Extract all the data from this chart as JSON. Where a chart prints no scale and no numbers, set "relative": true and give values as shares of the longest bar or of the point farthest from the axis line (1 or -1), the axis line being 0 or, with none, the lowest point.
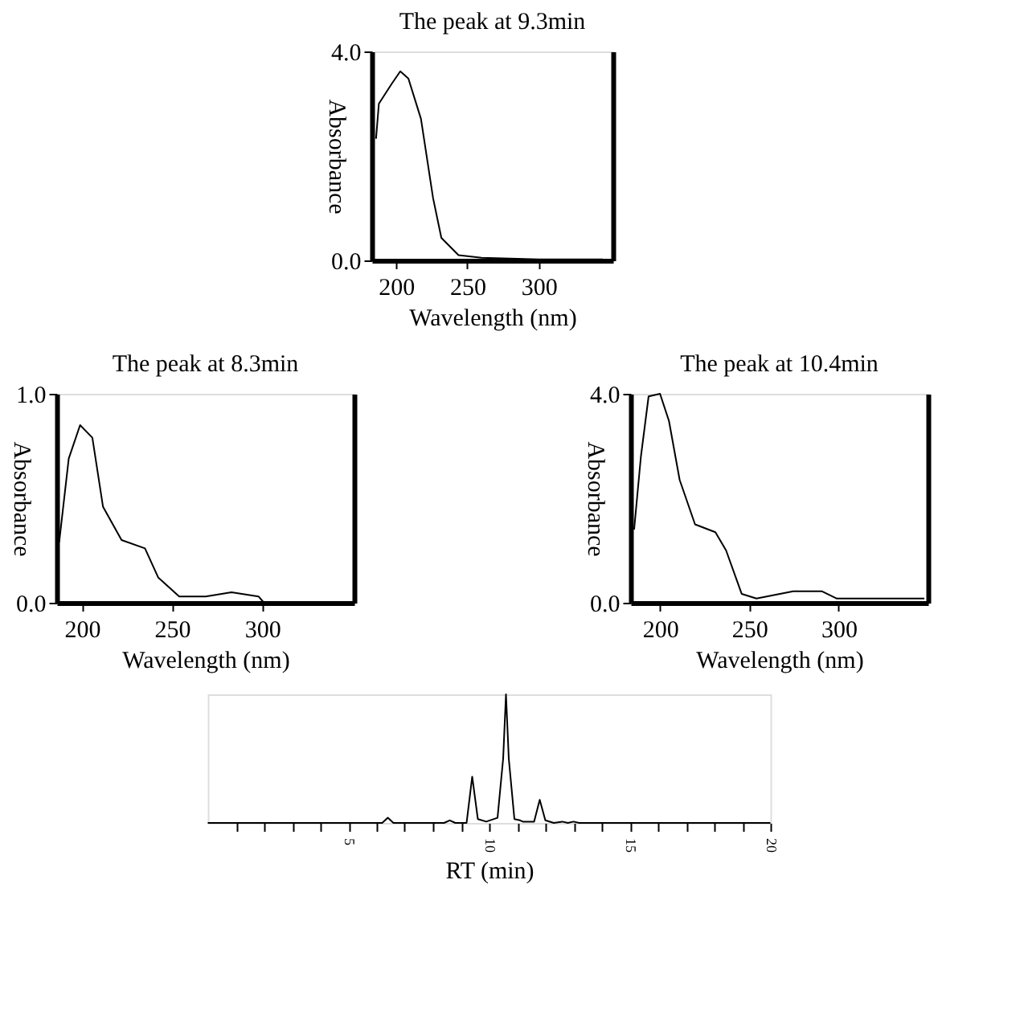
{
  "chart_data": [
    {
      "type": "line",
      "title": "The peak at 9.3min",
      "xlabel": "Wavelength (nm)",
      "ylabel": "Absorbance",
      "color": "#000000",
      "grid": false,
      "x": [
        186,
        188,
        197,
        203,
        208.7,
        217.5,
        226,
        231.8,
        243.8,
        260,
        300,
        345
      ],
      "values": [
        2.33,
        3.0,
        3.38,
        3.62,
        3.48,
        2.71,
        1.19,
        0.43,
        0.1,
        0.05,
        0.02,
        0.02
      ],
      "xlim": [
        183,
        352
      ],
      "ylim": [
        0,
        4
      ],
      "xticks": [
        200,
        250,
        300
      ],
      "yticks": [
        {
          "value": 0,
          "label": "0.0"
        },
        {
          "value": 4,
          "label": "4.0"
        }
      ]
    },
    {
      "type": "line",
      "title": "The peak at 8.3min",
      "xlabel": "Wavelength (nm)",
      "ylabel": "Absorbance",
      "color": "#000000",
      "grid": false,
      "x": [
        187.4,
        192.7,
        199,
        205.8,
        211.7,
        222,
        235,
        242.4,
        254,
        268.7,
        283,
        298,
        301,
        348
      ],
      "values": [
        0.29,
        0.69,
        0.85,
        0.79,
        0.46,
        0.3,
        0.26,
        0.12,
        0.03,
        0.03,
        0.05,
        0.03,
        0,
        0
      ],
      "xlim": [
        186,
        351
      ],
      "ylim": [
        0,
        1
      ],
      "xticks": [
        200,
        250,
        300
      ],
      "yticks": [
        {
          "value": 0,
          "label": "0.0"
        },
        {
          "value": 1,
          "label": "1.0"
        }
      ]
    },
    {
      "type": "line",
      "title": "The peak at 10.4min",
      "xlabel": "Wavelength (nm)",
      "ylabel": "Absorbance",
      "color": "#000000",
      "grid": false,
      "x": [
        185.5,
        189.3,
        193.6,
        200,
        205,
        211,
        219.6,
        231,
        237,
        245.7,
        254,
        274.6,
        290.5,
        299,
        326.6,
        348
      ],
      "values": [
        1.4,
        2.8,
        3.95,
        4.0,
        3.48,
        2.35,
        1.5,
        1.35,
        1.0,
        0.17,
        0.08,
        0.22,
        0.22,
        0.08,
        0.08,
        0.08
      ],
      "xlim": [
        183.5,
        350
      ],
      "ylim": [
        0,
        4
      ],
      "xticks": [
        200,
        250,
        300
      ],
      "yticks": [
        {
          "value": 0,
          "label": "0.0"
        },
        {
          "value": 4,
          "label": "4.0"
        }
      ]
    },
    {
      "type": "line",
      "xlabel": "RT (min)",
      "color": "#000000",
      "grid": false,
      "relative": true,
      "tick_labels": "x",
      "x": [
        0,
        6.2,
        6.4,
        6.6,
        8.4,
        8.6,
        8.8,
        9.2,
        9.4,
        9.6,
        9.9,
        10.3,
        10.5,
        10.6,
        10.7,
        10.9,
        11.1,
        11.2,
        11.6,
        11.8,
        12.0,
        12.3,
        12.6,
        12.8,
        13.0,
        13.2,
        20
      ],
      "values": [
        0,
        0,
        0.04,
        0,
        0,
        0.02,
        0,
        0,
        0.36,
        0.03,
        0.01,
        0.04,
        0.5,
        1,
        0.5,
        0.03,
        0.02,
        0.01,
        0.01,
        0.18,
        0.02,
        0,
        0.01,
        0,
        0.01,
        0,
        0
      ],
      "xlim": [
        0,
        20
      ],
      "xticks": [
        {
          "value": 1,
          "label": null
        },
        {
          "value": 2,
          "label": null
        },
        {
          "value": 3,
          "label": null
        },
        {
          "value": 4,
          "label": null
        },
        5,
        {
          "value": 6,
          "label": null
        },
        {
          "value": 7,
          "label": null
        },
        {
          "value": 8,
          "label": null
        },
        {
          "value": 9,
          "label": null
        },
        10,
        {
          "value": 11,
          "label": null
        },
        {
          "value": 12,
          "label": null
        },
        {
          "value": 13,
          "label": null
        },
        {
          "value": 14,
          "label": null
        },
        15,
        {
          "value": 16,
          "label": null
        },
        {
          "value": 17,
          "label": null
        },
        {
          "value": 18,
          "label": null
        },
        {
          "value": 19,
          "label": null
        },
        20
      ]
    }
  ]
}
